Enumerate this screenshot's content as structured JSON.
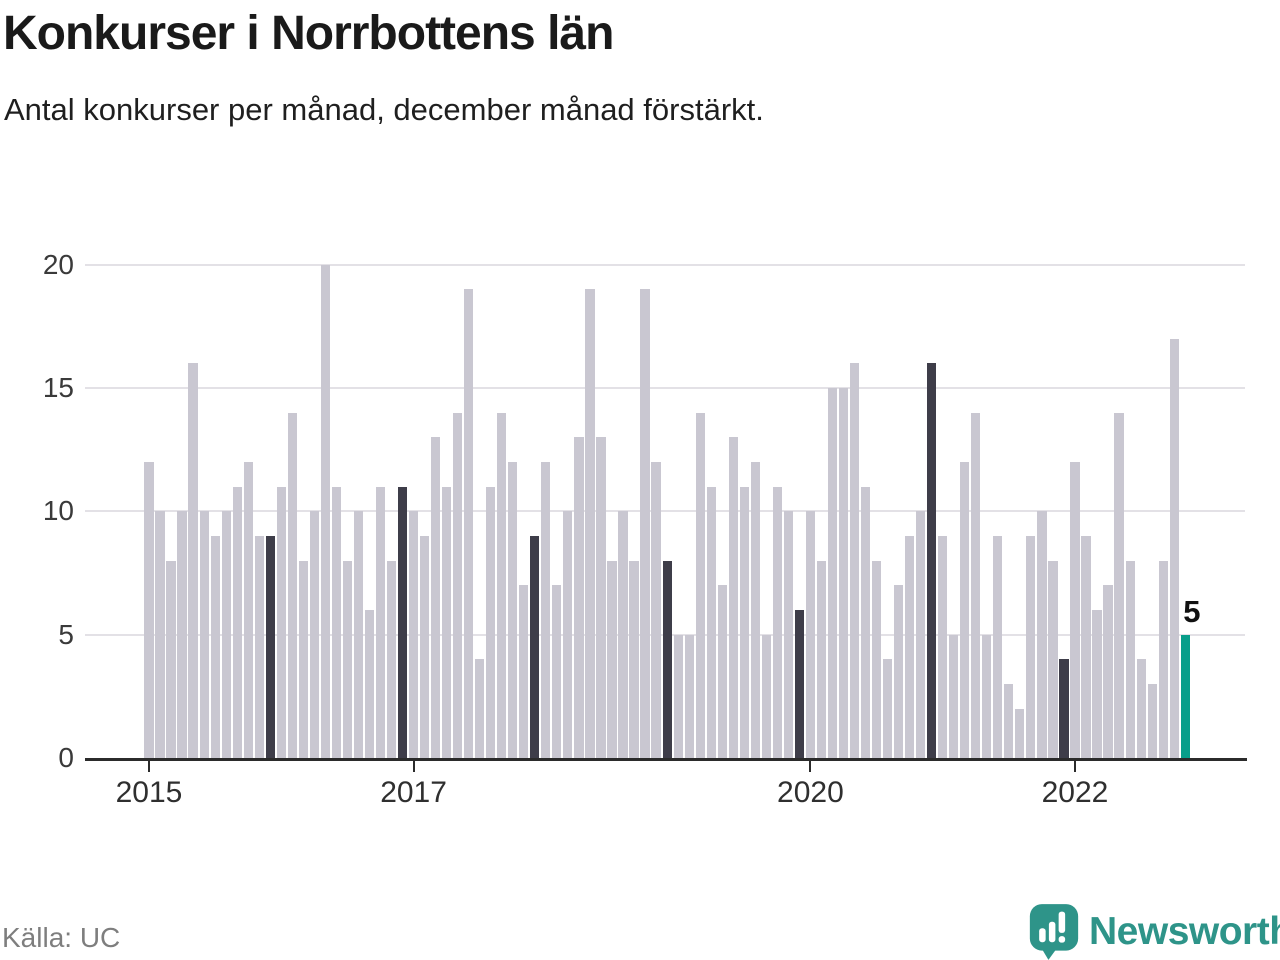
{
  "header": {
    "title": "Konkurser i Norrbottens län",
    "subtitle": "Antal konkurser per månad, december månad förstärkt."
  },
  "footer": {
    "source": "Källa: UC",
    "logo_text": "Newsworthy"
  },
  "chart_data": {
    "type": "bar",
    "title": "Konkurser i Norrbottens län",
    "subtitle": "Antal konkurser per månad, december månad förstärkt.",
    "xlabel": "",
    "ylabel": "",
    "ylim": [
      0,
      20
    ],
    "yticks": [
      0,
      5,
      10,
      15,
      20
    ],
    "grid": "horizontal",
    "legend": "none",
    "x_ticks": [
      {
        "label": "2015",
        "month_index": 0
      },
      {
        "label": "2017",
        "month_index": 24
      },
      {
        "label": "2020",
        "month_index": 60
      },
      {
        "label": "2022",
        "month_index": 84
      }
    ],
    "series_by_year": [
      {
        "year": 2015,
        "values": [
          12,
          10,
          8,
          10,
          16,
          10,
          9,
          10,
          11,
          12,
          9,
          9
        ]
      },
      {
        "year": 2016,
        "values": [
          11,
          14,
          8,
          10,
          20,
          11,
          8,
          10,
          6,
          11,
          8,
          11
        ]
      },
      {
        "year": 2017,
        "values": [
          10,
          9,
          13,
          11,
          14,
          19,
          4,
          11,
          14,
          12,
          7,
          9
        ]
      },
      {
        "year": 2018,
        "values": [
          12,
          7,
          10,
          13,
          19,
          13,
          8,
          10,
          8,
          19,
          12,
          8
        ]
      },
      {
        "year": 2019,
        "values": [
          5,
          5,
          14,
          11,
          7,
          13,
          11,
          12,
          5,
          11,
          10,
          6
        ]
      },
      {
        "year": 2020,
        "values": [
          10,
          8,
          15,
          15,
          16,
          11,
          8,
          4,
          7,
          9,
          10,
          16
        ]
      },
      {
        "year": 2021,
        "values": [
          9,
          5,
          12,
          14,
          5,
          9,
          3,
          2,
          9,
          10,
          8,
          4
        ]
      },
      {
        "year": 2022,
        "values": [
          12,
          9,
          6,
          7,
          14,
          8,
          4,
          3,
          8,
          17,
          5
        ]
      }
    ],
    "highlight": {
      "december_style": "darkened",
      "latest_month": "2022-11",
      "latest_value_label": "5"
    },
    "colors": {
      "bar_default": "#c9c7d1",
      "bar_december": "#3e3d49",
      "bar_latest": "#089e8a",
      "grid": "#e3e1e6",
      "axis": "#2b2b2b",
      "logo": "#2e9489"
    }
  }
}
